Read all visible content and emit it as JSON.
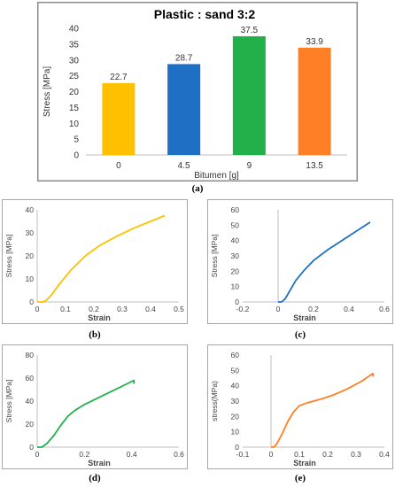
{
  "captions": [
    "(a)",
    "(b)",
    "(c)",
    "(d)",
    "(e)"
  ],
  "chart_data": [
    {
      "id": "a",
      "type": "bar",
      "title": "Plastic : sand  3:2",
      "xlabel": "Bitumen [g]",
      "ylabel": "Stress [MPa]",
      "categories": [
        "0",
        "4.5",
        "9",
        "13.5"
      ],
      "values": [
        22.7,
        28.7,
        37.5,
        33.9
      ],
      "value_labels": [
        "22.7",
        "28.7",
        "37.5",
        "33.9"
      ],
      "colors": [
        "#FFC000",
        "#1F6FC5",
        "#22B04B",
        "#FF7F27"
      ],
      "ylim": [
        0,
        40
      ],
      "yticks": [
        "0",
        "5",
        "10",
        "15",
        "20",
        "25",
        "30",
        "35",
        "40"
      ],
      "grid": false
    },
    {
      "id": "b",
      "type": "line",
      "xlabel": "Strain",
      "ylabel": "Stress [MPa]",
      "xlim": [
        0,
        0.5
      ],
      "ylim": [
        0,
        40
      ],
      "xticks": [
        "0",
        "0.1",
        "0.2",
        "0.3",
        "0.4",
        "0.5"
      ],
      "yticks": [
        "0",
        "10",
        "20",
        "30",
        "40"
      ],
      "color": "#FFC000",
      "x": [
        0,
        0.02,
        0.03,
        0.05,
        0.08,
        0.12,
        0.17,
        0.22,
        0.28,
        0.34,
        0.4,
        0.45
      ],
      "y": [
        0,
        0,
        0.5,
        3,
        8,
        14,
        20,
        24.5,
        28.5,
        32,
        35,
        37.5
      ]
    },
    {
      "id": "c",
      "type": "line",
      "xlabel": "Strain",
      "ylabel": "Stress [MPa]",
      "xlim": [
        -0.2,
        0.6
      ],
      "ylim": [
        0,
        60
      ],
      "xticks": [
        "-0.2",
        "0",
        "0.2",
        "0.4",
        "0.6"
      ],
      "yticks": [
        "0",
        "10",
        "20",
        "30",
        "40",
        "50",
        "60"
      ],
      "color": "#1F6FC5",
      "x": [
        0,
        0.02,
        0.04,
        0.07,
        0.1,
        0.15,
        0.2,
        0.28,
        0.36,
        0.44,
        0.52
      ],
      "y": [
        0,
        0,
        2,
        8,
        14,
        21,
        27,
        34,
        40,
        46,
        52
      ]
    },
    {
      "id": "d",
      "type": "line",
      "xlabel": "Strain",
      "ylabel": "Stress [MPa]",
      "xlim": [
        0,
        0.6
      ],
      "ylim": [
        0,
        80
      ],
      "xticks": [
        "0",
        "0.2",
        "0.4",
        "0.6"
      ],
      "yticks": [
        "0",
        "20",
        "40",
        "60",
        "80"
      ],
      "color": "#22B04B",
      "x": [
        0,
        0.02,
        0.04,
        0.07,
        0.1,
        0.13,
        0.16,
        0.2,
        0.26,
        0.32,
        0.38,
        0.41,
        0.41
      ],
      "y": [
        0,
        0,
        3,
        10,
        19,
        27,
        32,
        37,
        43,
        49,
        55,
        58,
        55
      ]
    },
    {
      "id": "e",
      "type": "line",
      "xlabel": "Strain",
      "ylabel": "stress(MPa)",
      "xlim": [
        -0.1,
        0.4
      ],
      "ylim": [
        0,
        60
      ],
      "xticks": [
        "-0.1",
        "0",
        "0.1",
        "0.2",
        "0.3",
        "0.4"
      ],
      "yticks": [
        "0",
        "10",
        "20",
        "30",
        "40",
        "50",
        "60"
      ],
      "color": "#FF7F27",
      "x": [
        0,
        0.01,
        0.02,
        0.04,
        0.06,
        0.08,
        0.1,
        0.13,
        0.17,
        0.22,
        0.27,
        0.32,
        0.36,
        0.36
      ],
      "y": [
        0,
        0,
        2,
        9,
        17,
        23,
        27,
        29,
        31,
        34,
        38,
        43,
        48,
        46
      ]
    }
  ]
}
